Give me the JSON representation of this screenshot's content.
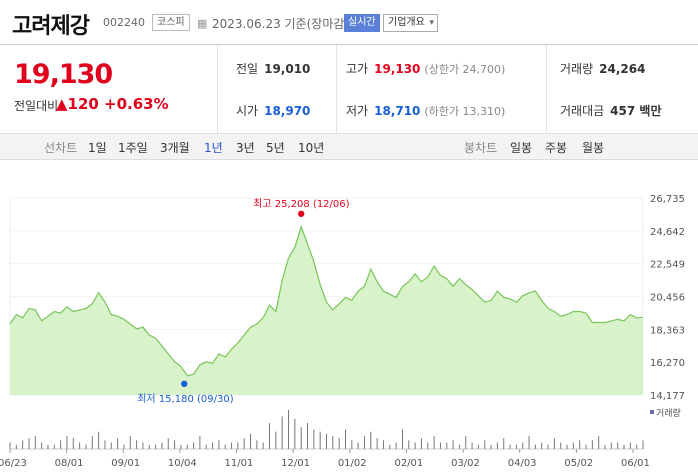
{
  "header": {
    "title": "고려제강",
    "code": "002240",
    "market": "코스피",
    "date": "2023.06.23 기준(장마감)",
    "live_label": "실시간",
    "company_dropdown": "기업개요",
    "calendar_icon": "calendar-icon"
  },
  "quote": {
    "price": "19,130",
    "change_label": "전일대비",
    "change": "▲120",
    "change_pct": "+0.63%",
    "prev_close_label": "전일",
    "prev_close": "19,010",
    "open_label": "시가",
    "open": "18,970",
    "high_label": "고가",
    "high": "19,130",
    "upper_limit": "(상한가 24,700)",
    "low_label": "저가",
    "low": "18,710",
    "lower_limit": "(하한가 13,310)",
    "volume_label": "거래량",
    "volume": "24,264",
    "amount_label": "거래대금",
    "amount": "457 백만",
    "up_color": "#e0001b",
    "down_color": "#1a5fd6"
  },
  "tabs": {
    "line_label": "선차트",
    "line_periods": [
      "1일",
      "1주일",
      "3개월",
      "1년",
      "3년",
      "5년",
      "10년"
    ],
    "active_period": "1년",
    "candle_label": "봉차트",
    "candle_periods": [
      "일봉",
      "주봉",
      "월봉"
    ]
  },
  "chart_data": {
    "type": "area",
    "title": "",
    "y_ticks": [
      "26,735",
      "24,642",
      "22,549",
      "20,456",
      "18,363",
      "16,270",
      "14,177"
    ],
    "ylim": [
      14177,
      26735
    ],
    "x_ticks": [
      "06/23",
      "08/01",
      "09/01",
      "10/04",
      "11/01",
      "12/01",
      "01/02",
      "02/01",
      "03/02",
      "04/03",
      "05/02",
      "06/01"
    ],
    "max_label": "최고 25,208 (12/06)",
    "min_label": "최저 15,180 (09/30)",
    "volume_label": "거래량",
    "series": [
      {
        "values": [
          18700,
          19300,
          19100,
          19700,
          19600,
          18900,
          19200,
          19500,
          19400,
          19800,
          19500,
          19600,
          19700,
          20000,
          20700,
          20100,
          19300,
          19200,
          19000,
          18700,
          18400,
          18500,
          18000,
          17800,
          17300,
          16800,
          16300,
          16000,
          15400,
          15500,
          16100,
          16300,
          16200,
          16800,
          16600,
          17100,
          17500,
          18000,
          18500,
          18700,
          19100,
          19900,
          19500,
          21500,
          22900,
          23600,
          24900,
          23800,
          22700,
          21200,
          20100,
          19600,
          20000,
          20400,
          20200,
          20800,
          21100,
          22200,
          21400,
          20800,
          20600,
          20400,
          21100,
          21400,
          21900,
          21400,
          21700,
          22400,
          21800,
          21600,
          21100,
          21600,
          21200,
          20900,
          20500,
          20100,
          20200,
          20800,
          20400,
          20300,
          20100,
          20500,
          20700,
          20800,
          20200,
          19700,
          19500,
          19200,
          19300,
          19500,
          19500,
          19400,
          18800,
          18800,
          18800,
          18900,
          19000,
          18900,
          19300,
          19100,
          19130
        ],
        "volumes": [
          3,
          2,
          4,
          5,
          6,
          3,
          2,
          2,
          4,
          6,
          5,
          3,
          2,
          6,
          8,
          4,
          3,
          5,
          2,
          6,
          4,
          3,
          2,
          2,
          3,
          5,
          4,
          2,
          2,
          3,
          6,
          2,
          3,
          4,
          2,
          3,
          3,
          5,
          7,
          4,
          3,
          12,
          8,
          15,
          18,
          14,
          10,
          12,
          9,
          8,
          7,
          6,
          5,
          9,
          4,
          3,
          6,
          8,
          5,
          4,
          2,
          3,
          9,
          4,
          3,
          5,
          3,
          6,
          3,
          3,
          4,
          2,
          6,
          3,
          2,
          4,
          2,
          3,
          5,
          2,
          2,
          3,
          6,
          2,
          3,
          2,
          5,
          3,
          2,
          3,
          4,
          2,
          4,
          6,
          2,
          3,
          3,
          2,
          3,
          2,
          4
        ],
        "color": "#78c65a",
        "fill": "#d8f2c9"
      }
    ]
  }
}
